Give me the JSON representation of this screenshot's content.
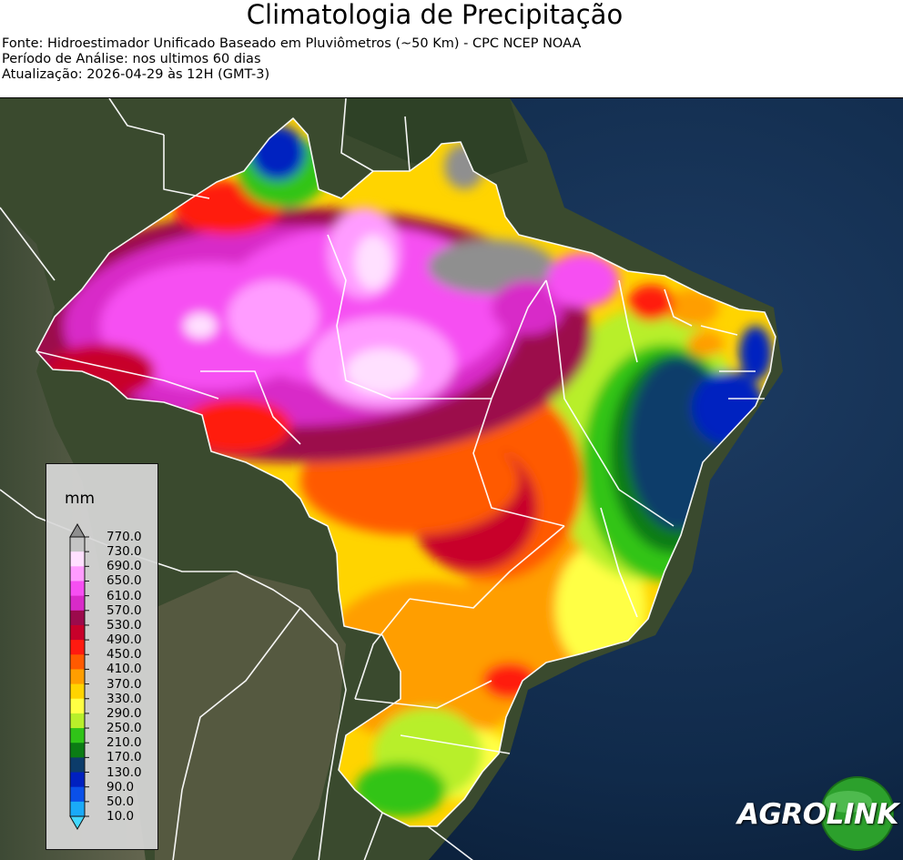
{
  "header": {
    "title": "Climatologia de Precipitação",
    "source": "Fonte: Hidroestimador Unificado Baseado em Pluviômetros (~50 Km) - CPC NCEP NOAA",
    "period": "Período de Análise: nos ultimos 60 dias",
    "updated": "Atualização: 2026-04-29 às 12H (GMT-3)"
  },
  "legend": {
    "unit": "mm",
    "ticks": [
      "770.0",
      "730.0",
      "690.0",
      "650.0",
      "610.0",
      "570.0",
      "530.0",
      "490.0",
      "450.0",
      "410.0",
      "370.0",
      "330.0",
      "290.0",
      "250.0",
      "210.0",
      "170.0",
      "130.0",
      "90.0",
      "50.0",
      "10.0"
    ],
    "colors": [
      "#8f8f8f",
      "#c4c4c4",
      "#ffe0ff",
      "#ff9cff",
      "#f64ff2",
      "#d82ac8",
      "#9c0a4c",
      "#c8002a",
      "#ff1a10",
      "#ff5a00",
      "#ff9e00",
      "#ffd400",
      "#ffff44",
      "#b8ef2a",
      "#30c418",
      "#0b7c14",
      "#0c3c6a",
      "#0020c0",
      "#0a50e8",
      "#1aaaf8",
      "#44d8ff"
    ]
  },
  "logo": {
    "text": "AGROLINK",
    "part1": "AGRO",
    "part2": "LINK",
    "ring_color": "#2ca02c"
  },
  "colors": {
    "ocean": "#0f2742",
    "land": "#3b4a2c",
    "border": "#ffffff"
  }
}
